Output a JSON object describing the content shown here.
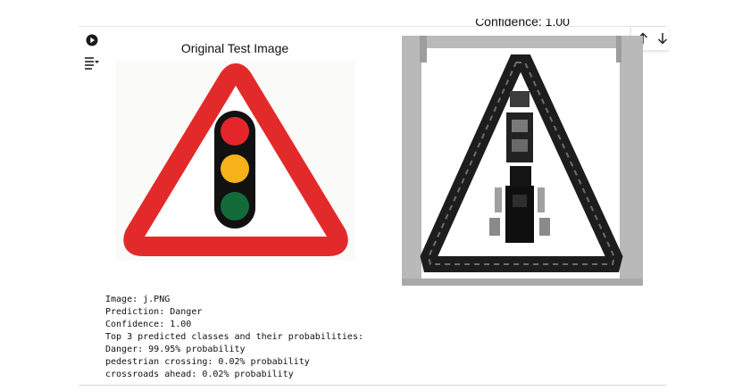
{
  "cell": {
    "run_icon": "play-circle-icon",
    "output_toggle_icon": "output-toggle-icon",
    "toolbar": {
      "move_up_icon": "arrow-up-icon",
      "move_down_icon": "arrow-down-icon"
    }
  },
  "figure": {
    "left_title": "Original Test Image",
    "right_title": "Confidence: 1.00"
  },
  "output_lines": [
    "Image: j.PNG",
    "Prediction: Danger",
    "Confidence: 1.00",
    "Top 3 predicted classes and their probabilities:",
    "Danger: 99.95% probability",
    "pedestrian crossing: 0.02% probability",
    "crossroads ahead: 0.02% probability"
  ],
  "colors": {
    "sign_border": "#e32a2a",
    "light_red": "#e5252b",
    "light_amber": "#f6b21b",
    "light_green": "#136b3a",
    "pixel_gray": "#b7b7b7"
  }
}
